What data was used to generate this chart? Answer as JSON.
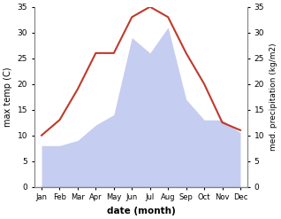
{
  "months": [
    "Jan",
    "Feb",
    "Mar",
    "Apr",
    "May",
    "Jun",
    "Jul",
    "Aug",
    "Sep",
    "Oct",
    "Nov",
    "Dec"
  ],
  "temp": [
    10,
    13,
    19,
    26,
    26,
    33,
    35,
    33,
    26,
    20,
    12.5,
    11
  ],
  "precip": [
    8,
    8,
    9,
    12,
    14,
    29,
    26,
    31,
    17,
    13,
    13,
    10.5
  ],
  "temp_color": "#c0392b",
  "precip_fill_color": "#c5cdf0",
  "temp_ylim": [
    0,
    35
  ],
  "precip_ylim": [
    0,
    35
  ],
  "xlabel": "date (month)",
  "ylabel_left": "max temp (C)",
  "ylabel_right": "med. precipitation (kg/m2)",
  "bg_color": "#ffffff",
  "yticks": [
    0,
    5,
    10,
    15,
    20,
    25,
    30,
    35
  ],
  "temp_linewidth": 1.5,
  "fig_width": 3.18,
  "fig_height": 2.47,
  "dpi": 100
}
